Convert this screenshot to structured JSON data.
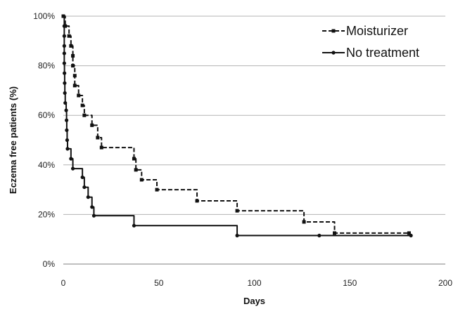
{
  "chart_data": {
    "type": "line",
    "title": "",
    "xlabel": "Days",
    "ylabel": "Eczema free patients (%)",
    "xlim": [
      0,
      200
    ],
    "ylim": [
      0,
      100
    ],
    "x_ticks": [
      0,
      50,
      100,
      150,
      200
    ],
    "y_ticks": [
      0,
      20,
      40,
      60,
      80,
      100
    ],
    "y_tick_suffix": "%",
    "grid": "horizontal",
    "legend_position": "top-right",
    "series": [
      {
        "name": "Moisturizer",
        "line_style": "dashed",
        "marker": "square",
        "color": "#111111",
        "step": true,
        "points": [
          [
            0,
            100
          ],
          [
            1,
            96
          ],
          [
            3,
            92
          ],
          [
            4,
            88
          ],
          [
            5,
            84
          ],
          [
            5,
            80
          ],
          [
            6,
            76
          ],
          [
            6,
            72
          ],
          [
            8,
            68
          ],
          [
            10,
            64
          ],
          [
            11,
            60
          ],
          [
            15,
            56
          ],
          [
            18,
            51
          ],
          [
            20,
            47
          ],
          [
            37,
            42.5
          ],
          [
            38,
            38
          ],
          [
            41,
            34
          ],
          [
            49,
            30
          ],
          [
            70,
            25.5
          ],
          [
            91,
            21.5
          ],
          [
            126,
            17
          ],
          [
            142,
            12.5
          ],
          [
            181,
            12.5
          ]
        ]
      },
      {
        "name": "No treatment",
        "line_style": "solid",
        "marker": "circle",
        "color": "#111111",
        "step": true,
        "points": [
          [
            0,
            100
          ],
          [
            0.5,
            96
          ],
          [
            0.5,
            92
          ],
          [
            0.5,
            88
          ],
          [
            0.5,
            85
          ],
          [
            0.5,
            81
          ],
          [
            0.6,
            77
          ],
          [
            0.7,
            73
          ],
          [
            0.8,
            69
          ],
          [
            1,
            65
          ],
          [
            1.5,
            62
          ],
          [
            1.7,
            58
          ],
          [
            1.8,
            54
          ],
          [
            2,
            50
          ],
          [
            2.2,
            46.5
          ],
          [
            4,
            42.5
          ],
          [
            5,
            38.5
          ],
          [
            10,
            35
          ],
          [
            11,
            31
          ],
          [
            13,
            27
          ],
          [
            15,
            23
          ],
          [
            16,
            19.5
          ],
          [
            37,
            15.5
          ],
          [
            91,
            11.5
          ],
          [
            134,
            11.5
          ],
          [
            182,
            11.5
          ]
        ]
      }
    ]
  }
}
